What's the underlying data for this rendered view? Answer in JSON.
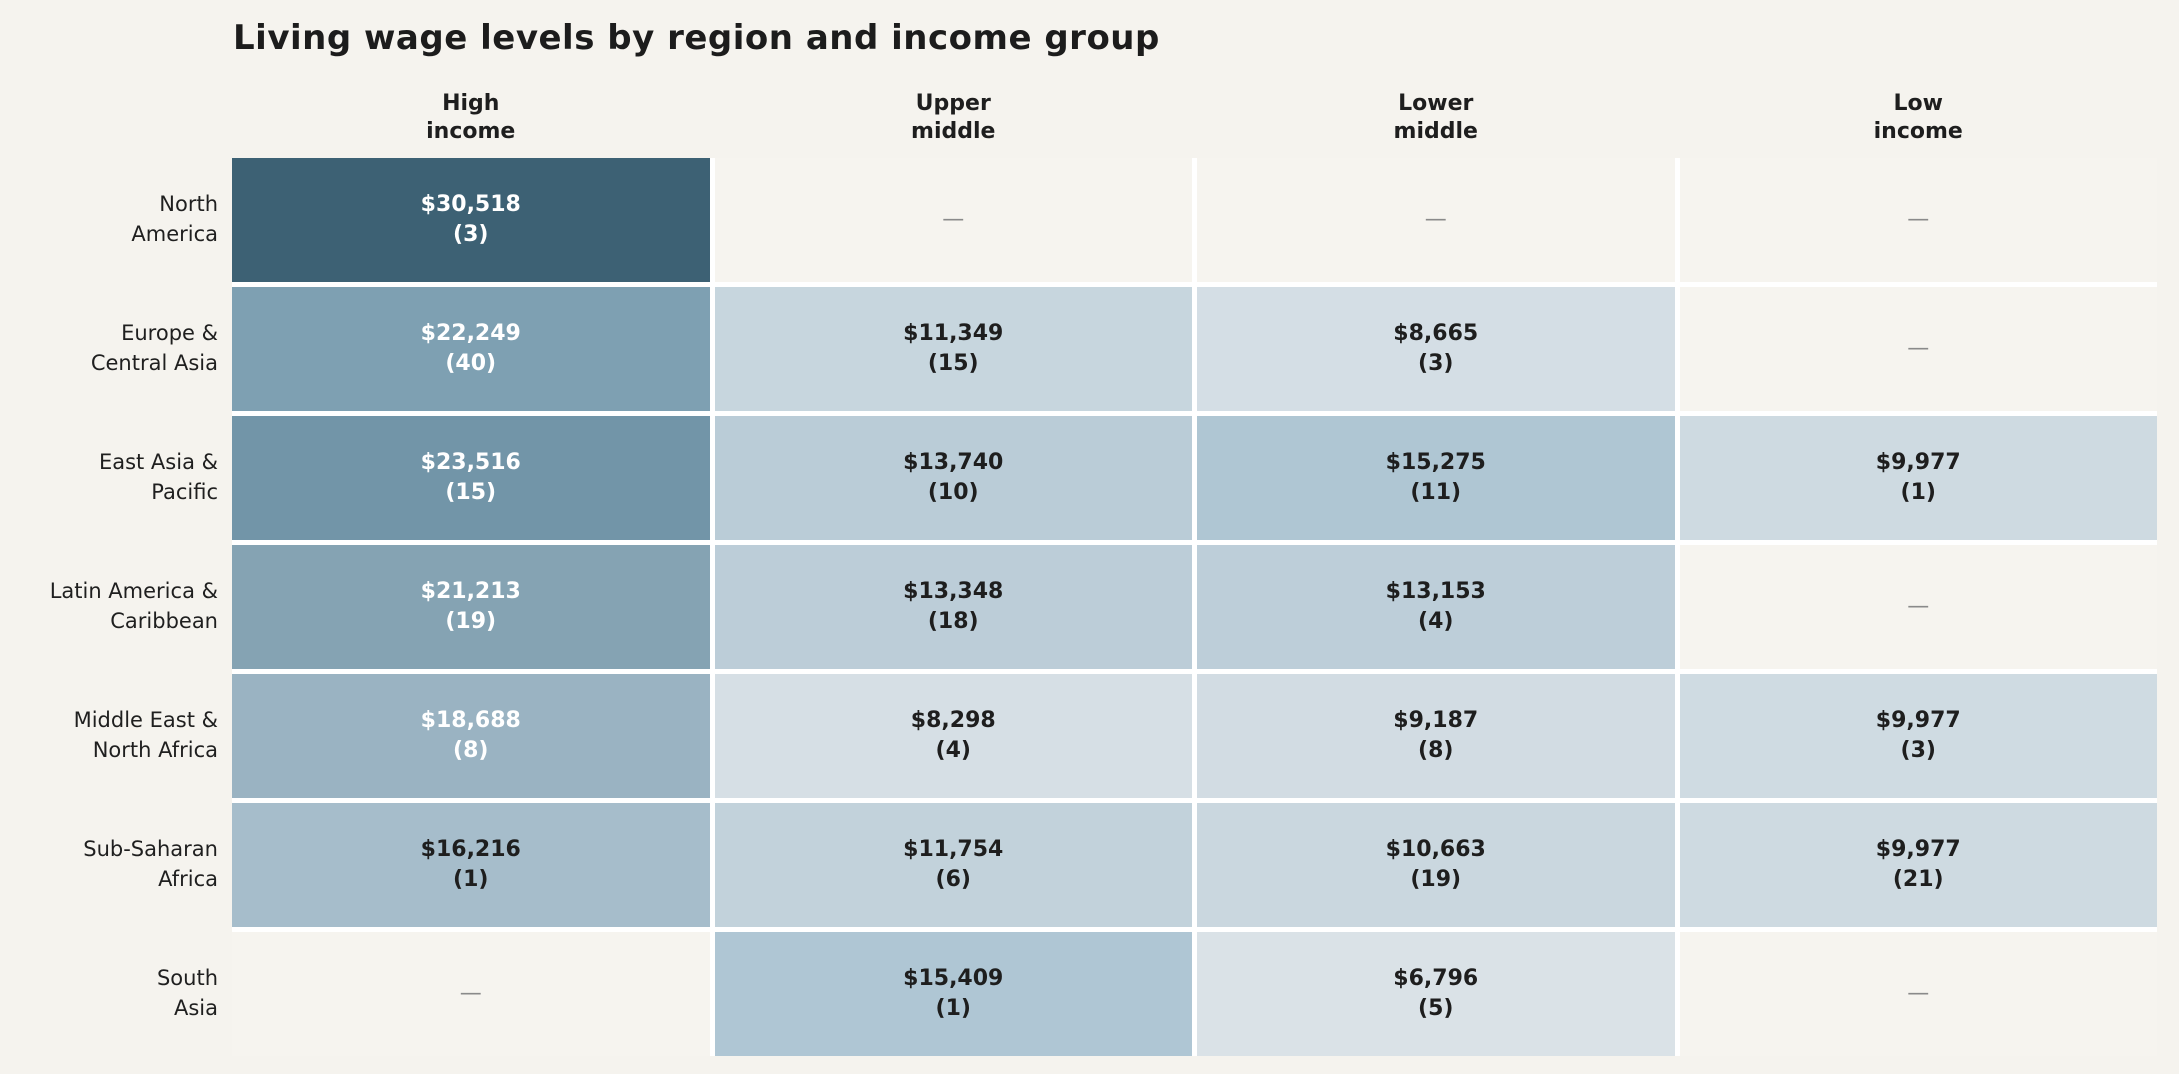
{
  "chart_data": {
    "type": "heatmap",
    "title": "Living wage levels by region and income group",
    "value_unit": "USD per year",
    "empty_marker": "—",
    "legend_position": "none",
    "columns": [
      "High\nincome",
      "Upper\nmiddle",
      "Lower\nmiddle",
      "Low\nincome"
    ],
    "rows": [
      {
        "region": "North\nAmerica",
        "cells": [
          {
            "wage": "$30,518",
            "count": "(3)",
            "wage_usd": 30518,
            "n": 3,
            "bg": "#3d6174",
            "fg": "#ffffff"
          },
          {
            "wage": "—",
            "count": "",
            "wage_usd": null,
            "n": null,
            "bg": "#f6f4ef",
            "fg": "#8a8a8a"
          },
          {
            "wage": "—",
            "count": "",
            "wage_usd": null,
            "n": null,
            "bg": "#f6f4ef",
            "fg": "#8a8a8a"
          },
          {
            "wage": "—",
            "count": "",
            "wage_usd": null,
            "n": null,
            "bg": "#f6f4ef",
            "fg": "#8a8a8a"
          }
        ]
      },
      {
        "region": "Europe &\nCentral Asia",
        "cells": [
          {
            "wage": "$22,249",
            "count": "(40)",
            "wage_usd": 22249,
            "n": 40,
            "bg": "#7ea0b2",
            "fg": "#ffffff"
          },
          {
            "wage": "$11,349",
            "count": "(15)",
            "wage_usd": 11349,
            "n": 15,
            "bg": "#c7d6de",
            "fg": "#1e1e1e"
          },
          {
            "wage": "$8,665",
            "count": "(3)",
            "wage_usd": 8665,
            "n": 3,
            "bg": "#d4dee5",
            "fg": "#1e1e1e"
          },
          {
            "wage": "—",
            "count": "",
            "wage_usd": null,
            "n": null,
            "bg": "#f6f4ef",
            "fg": "#8a8a8a"
          }
        ]
      },
      {
        "region": "East Asia &\nPacific",
        "cells": [
          {
            "wage": "$23,516",
            "count": "(15)",
            "wage_usd": 23516,
            "n": 15,
            "bg": "#7295a8",
            "fg": "#ffffff"
          },
          {
            "wage": "$13,740",
            "count": "(10)",
            "wage_usd": 13740,
            "n": 10,
            "bg": "#baccd7",
            "fg": "#1e1e1e"
          },
          {
            "wage": "$15,275",
            "count": "(11)",
            "wage_usd": 15275,
            "n": 11,
            "bg": "#afc6d3",
            "fg": "#1e1e1e"
          },
          {
            "wage": "$9,977",
            "count": "(1)",
            "wage_usd": 9977,
            "n": 1,
            "bg": "#cedae1",
            "fg": "#1e1e1e"
          }
        ]
      },
      {
        "region": "Latin America &\nCaribbean",
        "cells": [
          {
            "wage": "$21,213",
            "count": "(19)",
            "wage_usd": 21213,
            "n": 19,
            "bg": "#85a3b3",
            "fg": "#ffffff"
          },
          {
            "wage": "$13,348",
            "count": "(18)",
            "wage_usd": 13348,
            "n": 18,
            "bg": "#bccdd8",
            "fg": "#1e1e1e"
          },
          {
            "wage": "$13,153",
            "count": "(4)",
            "wage_usd": 13153,
            "n": 4,
            "bg": "#bdced9",
            "fg": "#1e1e1e"
          },
          {
            "wage": "—",
            "count": "",
            "wage_usd": null,
            "n": null,
            "bg": "#f6f4ef",
            "fg": "#8a8a8a"
          }
        ]
      },
      {
        "region": "Middle East &\nNorth Africa",
        "cells": [
          {
            "wage": "$18,688",
            "count": "(8)",
            "wage_usd": 18688,
            "n": 8,
            "bg": "#9ab3c2",
            "fg": "#ffffff"
          },
          {
            "wage": "$8,298",
            "count": "(4)",
            "wage_usd": 8298,
            "n": 4,
            "bg": "#d6dfe5",
            "fg": "#1e1e1e"
          },
          {
            "wage": "$9,187",
            "count": "(8)",
            "wage_usd": 9187,
            "n": 8,
            "bg": "#d2dce3",
            "fg": "#1e1e1e"
          },
          {
            "wage": "$9,977",
            "count": "(3)",
            "wage_usd": 9977,
            "n": 3,
            "bg": "#cfdbe2",
            "fg": "#1e1e1e"
          }
        ]
      },
      {
        "region": "Sub-Saharan\nAfrica",
        "cells": [
          {
            "wage": "$16,216",
            "count": "(1)",
            "wage_usd": 16216,
            "n": 1,
            "bg": "#a6bdcb",
            "fg": "#1e1e1e"
          },
          {
            "wage": "$11,754",
            "count": "(6)",
            "wage_usd": 11754,
            "n": 6,
            "bg": "#c2d2db",
            "fg": "#1e1e1e"
          },
          {
            "wage": "$10,663",
            "count": "(19)",
            "wage_usd": 10663,
            "n": 19,
            "bg": "#cad7df",
            "fg": "#1e1e1e"
          },
          {
            "wage": "$9,977",
            "count": "(21)",
            "wage_usd": 9977,
            "n": 21,
            "bg": "#cedae1",
            "fg": "#1e1e1e"
          }
        ]
      },
      {
        "region": "South\nAsia",
        "cells": [
          {
            "wage": "—",
            "count": "",
            "wage_usd": null,
            "n": null,
            "bg": "#f6f4ef",
            "fg": "#8a8a8a"
          },
          {
            "wage": "$15,409",
            "count": "(1)",
            "wage_usd": 15409,
            "n": 1,
            "bg": "#afc6d4",
            "fg": "#1e1e1e"
          },
          {
            "wage": "$6,796",
            "count": "(5)",
            "wage_usd": 6796,
            "n": 5,
            "bg": "#dae2e7",
            "fg": "#1e1e1e"
          },
          {
            "wage": "—",
            "count": "",
            "wage_usd": null,
            "n": null,
            "bg": "#f6f4ef",
            "fg": "#8a8a8a"
          }
        ]
      }
    ],
    "colors": {
      "page_bg": "#f5f3ee",
      "cell_gap": "#ffffff",
      "scale_max": "#3d6174",
      "scale_min": "#dae2e7",
      "title_text": "#1c1c1c"
    }
  }
}
